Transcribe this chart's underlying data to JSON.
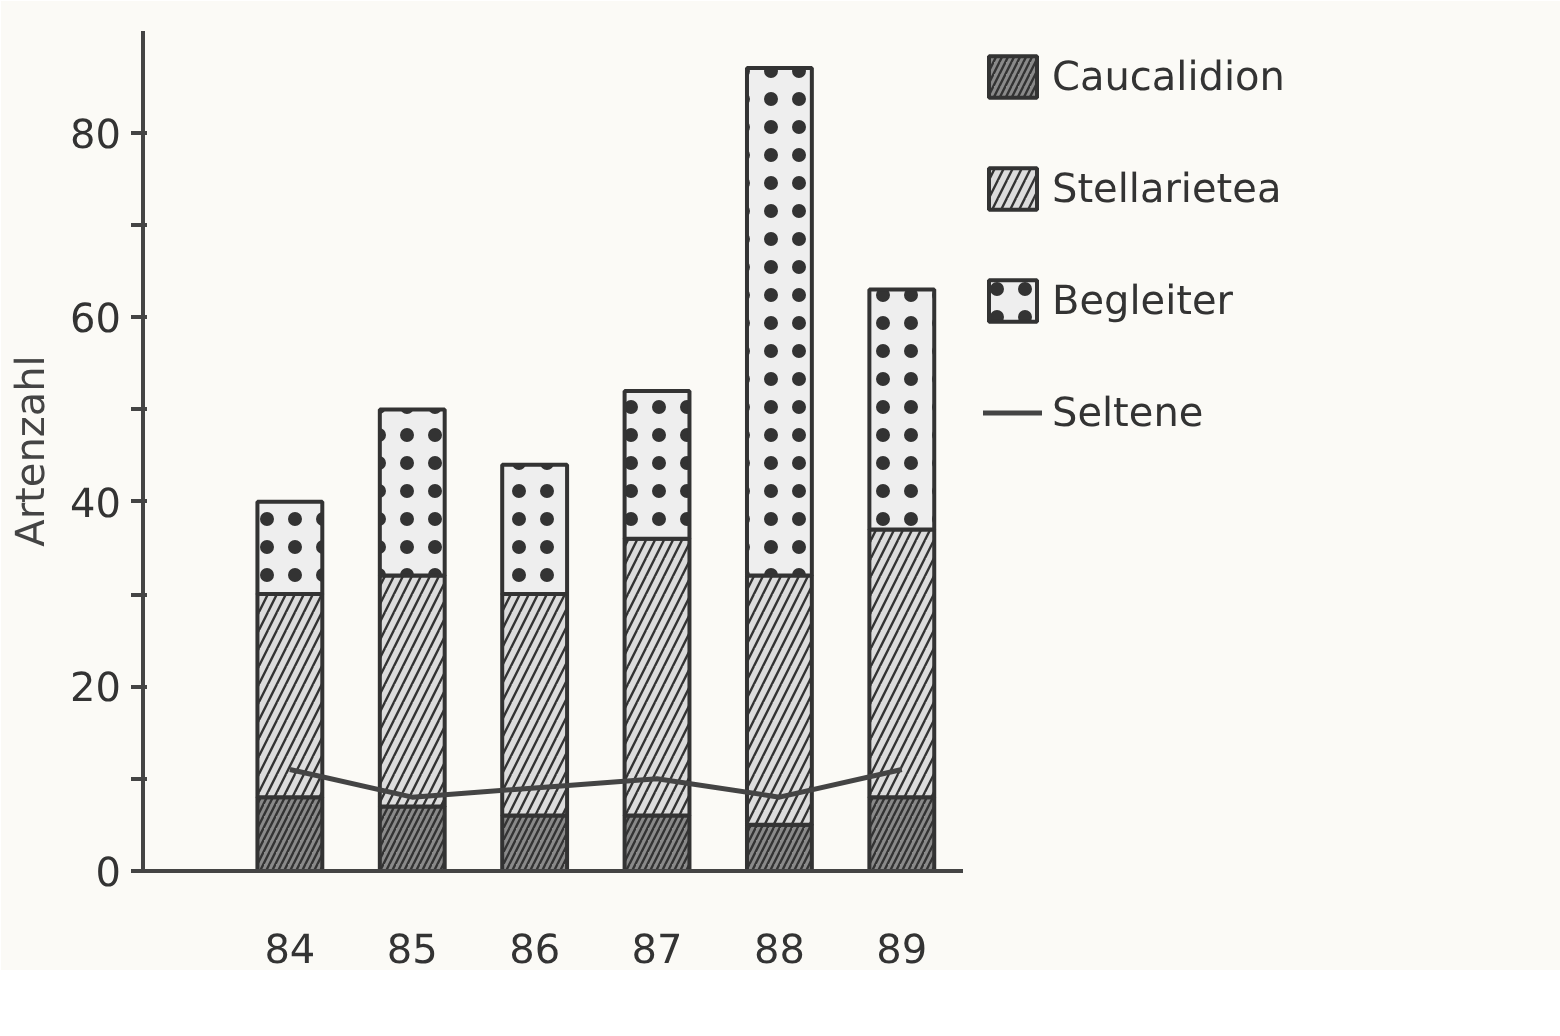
{
  "chart_data": {
    "type": "bar",
    "stacked": true,
    "ylabel": "Artenzahl",
    "categories": [
      "84",
      "85",
      "86",
      "87",
      "88",
      "89"
    ],
    "series": [
      {
        "name": "Caucalidion",
        "color": "#8a8a8a",
        "values": [
          8,
          7,
          6,
          6,
          5,
          8
        ]
      },
      {
        "name": "Stellarietea",
        "color": "#dcdcdc",
        "values": [
          22,
          25,
          24,
          30,
          27,
          29
        ]
      },
      {
        "name": "Begleiter",
        "color": "#eeeeee",
        "values": [
          10,
          18,
          14,
          16,
          55,
          26
        ]
      },
      {
        "name": "Seltene",
        "type": "line",
        "color": "#444444",
        "values": [
          11,
          8,
          9,
          10,
          8,
          11
        ]
      }
    ],
    "ylim": [
      0,
      91
    ],
    "yticks": [
      0,
      {
        "value": 10,
        "label": null
      },
      20,
      {
        "value": 30,
        "label": null
      },
      40,
      {
        "value": 50,
        "label": null
      },
      60,
      {
        "value": 70,
        "label": null
      },
      80
    ],
    "grid": false,
    "legend": "right"
  }
}
